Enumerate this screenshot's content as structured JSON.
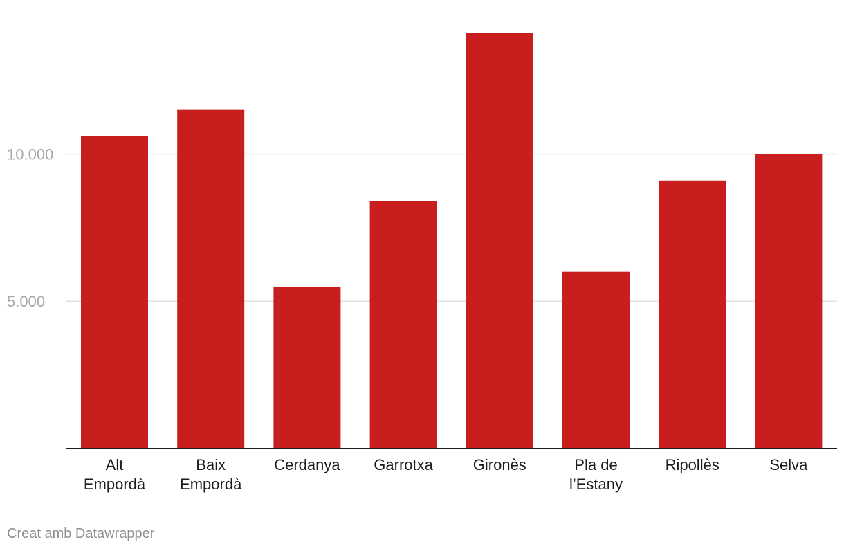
{
  "chart_data": {
    "type": "bar",
    "categories": [
      [
        "Alt",
        "Empordà"
      ],
      [
        "Baix",
        "Empordà"
      ],
      [
        "Cerdanya"
      ],
      [
        "Garrotxa"
      ],
      [
        "Gironès"
      ],
      [
        "Pla de",
        "l’Estany"
      ],
      [
        "Ripollès"
      ],
      [
        "Selva"
      ]
    ],
    "values": [
      10600,
      11500,
      5500,
      8400,
      14100,
      6000,
      9100,
      10000
    ],
    "ylim": [
      0,
      14100
    ],
    "yticks": [
      {
        "value": 5000,
        "label": "5.000"
      },
      {
        "value": 10000,
        "label": "10.000"
      }
    ],
    "grid": true,
    "bar_color": "#c91e1e"
  },
  "credit": "Creat amb Datawrapper"
}
